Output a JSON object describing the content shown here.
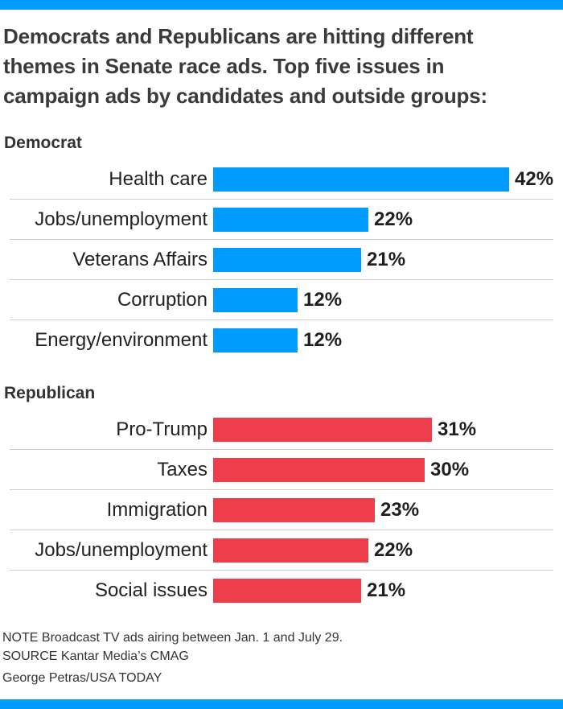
{
  "title_lines": [
    "Democrats and Republicans are hitting different",
    "themes in Senate race ads. Top five issues in",
    "campaign ads by candidates and outside groups:"
  ],
  "colors": {
    "accent_blue": "#009bff",
    "democrat_blue": "#009bff",
    "republican_red": "#ef3e4b",
    "title_text": "#3a3a3a",
    "separator": "#cfcfcf"
  },
  "chart_data": {
    "type": "bar",
    "orientation": "horizontal",
    "value_unit": "%",
    "title": "Democrats and Republicans are hitting different themes in Senate race ads. Top five issues in campaign ads by candidates and outside groups:",
    "xlim": [
      0,
      47
    ],
    "grid": false,
    "legend": false,
    "groups": [
      {
        "name": "Democrat",
        "color": "#009bff",
        "categories": [
          "Health care",
          "Jobs/unemployment",
          "Veterans Affairs",
          "Corruption",
          "Energy/environment"
        ],
        "values": [
          42,
          22,
          21,
          12,
          12
        ],
        "value_labels": [
          "42%",
          "22%",
          "21%",
          "12%",
          "12%"
        ]
      },
      {
        "name": "Republican",
        "color": "#ef3e4b",
        "categories": [
          "Pro-Trump",
          "Taxes",
          "Immigration",
          "Jobs/unemployment",
          "Social issues"
        ],
        "values": [
          31,
          30,
          23,
          22,
          21
        ],
        "value_labels": [
          "31%",
          "30%",
          "23%",
          "22%",
          "21%"
        ]
      }
    ]
  },
  "footer": {
    "note": "NOTE Broadcast TV ads airing between Jan. 1 and July 29.",
    "source": "SOURCE Kantar Media’s CMAG",
    "byline": "George Petras/USA TODAY"
  }
}
